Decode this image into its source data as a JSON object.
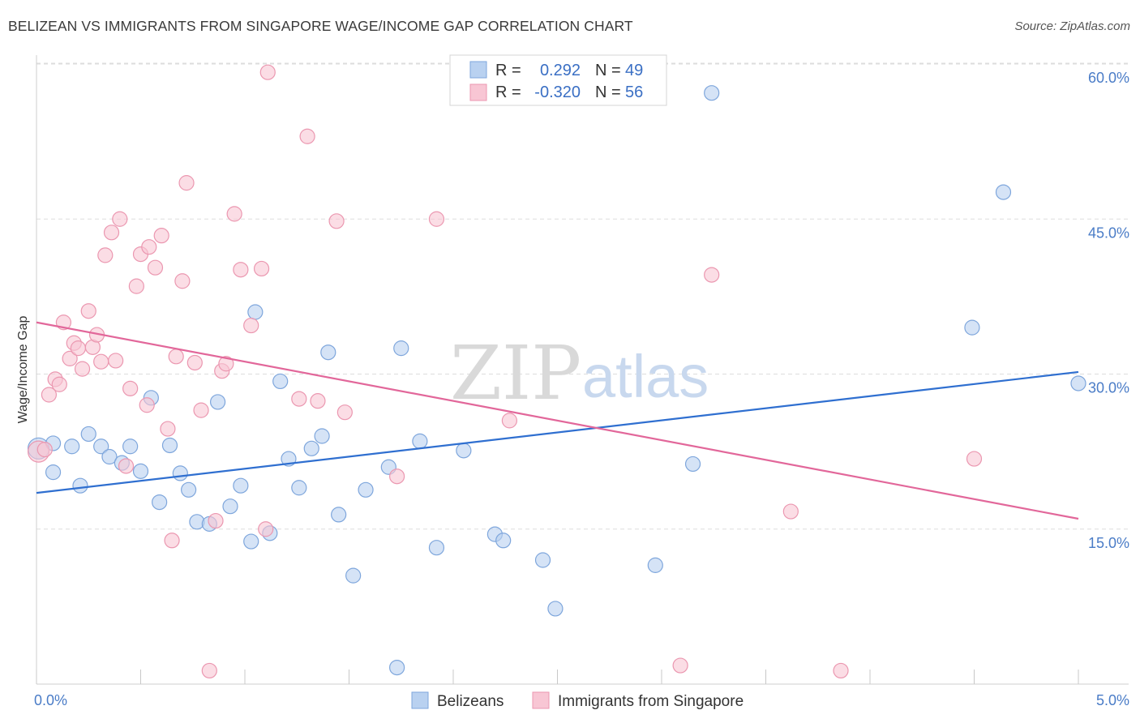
{
  "header": {
    "title": "BELIZEAN VS IMMIGRANTS FROM SINGAPORE WAGE/INCOME GAP CORRELATION CHART",
    "source": "Source: ZipAtlas.com"
  },
  "watermark": {
    "zip": "ZIP",
    "atlas": "atlas"
  },
  "legend": {
    "r_label": "R =",
    "n_label": "N =",
    "rows": [
      {
        "r": "0.292",
        "n": "49",
        "color": "#a9c6ee"
      },
      {
        "r": "-0.320",
        "n": "56",
        "color": "#f5b6c8"
      }
    ]
  },
  "colors": {
    "blue_fill": "#b9d1f0",
    "blue_stroke": "#7ea6dc",
    "blue_line": "#2f6fd0",
    "pink_fill": "#f8c6d4",
    "pink_stroke": "#eb97b0",
    "pink_line": "#e2679a",
    "grid": "#dddddd",
    "axis_text": "#4a7cc7"
  },
  "chart_data": {
    "type": "scatter",
    "title": "BELIZEAN VS IMMIGRANTS FROM SINGAPORE WAGE/INCOME GAP CORRELATION CHART",
    "ylabel": "Wage/Income Gap",
    "xlabel": "",
    "xlim": [
      0,
      5
    ],
    "ylim": [
      0,
      61
    ],
    "x_ticks": [
      "0.0%",
      "5.0%"
    ],
    "y_ticks": [
      {
        "value": 15,
        "label": "15.0%"
      },
      {
        "value": 30,
        "label": "30.0%"
      },
      {
        "value": 45,
        "label": "45.0%"
      },
      {
        "value": 60,
        "label": "60.0%"
      }
    ],
    "grid": true,
    "legend_position": "bottom",
    "series": [
      {
        "name": "Belizeans",
        "color": "#b9d1f0",
        "trend": {
          "x0": 0,
          "y0": 18.5,
          "x1": 5,
          "y1": 30.2
        },
        "points": [
          [
            0.01,
            22.8
          ],
          [
            0.08,
            23.3
          ],
          [
            0.08,
            20.5
          ],
          [
            0.17,
            23.0
          ],
          [
            0.21,
            19.2
          ],
          [
            0.25,
            24.2
          ],
          [
            0.31,
            23.0
          ],
          [
            0.35,
            22.0
          ],
          [
            0.41,
            21.4
          ],
          [
            0.45,
            23.0
          ],
          [
            0.5,
            20.6
          ],
          [
            0.55,
            27.7
          ],
          [
            0.59,
            17.6
          ],
          [
            0.64,
            23.1
          ],
          [
            0.69,
            20.4
          ],
          [
            0.73,
            18.8
          ],
          [
            0.77,
            15.7
          ],
          [
            0.83,
            15.5
          ],
          [
            0.87,
            27.3
          ],
          [
            0.93,
            17.2
          ],
          [
            0.98,
            19.2
          ],
          [
            1.03,
            13.8
          ],
          [
            1.05,
            36.0
          ],
          [
            1.12,
            14.6
          ],
          [
            1.17,
            29.3
          ],
          [
            1.21,
            21.8
          ],
          [
            1.26,
            19.0
          ],
          [
            1.32,
            22.8
          ],
          [
            1.37,
            24.0
          ],
          [
            1.4,
            32.1
          ],
          [
            1.45,
            16.4
          ],
          [
            1.52,
            10.5
          ],
          [
            1.58,
            18.8
          ],
          [
            1.69,
            21.0
          ],
          [
            1.73,
            1.6
          ],
          [
            1.75,
            32.5
          ],
          [
            1.84,
            23.5
          ],
          [
            1.92,
            13.2
          ],
          [
            2.05,
            22.6
          ],
          [
            2.2,
            14.5
          ],
          [
            2.24,
            13.9
          ],
          [
            2.43,
            12.0
          ],
          [
            2.49,
            7.3
          ],
          [
            2.97,
            11.5
          ],
          [
            3.15,
            21.3
          ],
          [
            3.24,
            57.2
          ],
          [
            4.49,
            34.5
          ],
          [
            4.64,
            47.6
          ],
          [
            5.0,
            29.1
          ]
        ]
      },
      {
        "name": "Immigrants from Singapore",
        "color": "#f8c6d4",
        "trend": {
          "x0": 0,
          "y0": 35.0,
          "x1": 5,
          "y1": 16.0
        },
        "points": [
          [
            0.01,
            22.5
          ],
          [
            0.04,
            22.7
          ],
          [
            0.06,
            28.0
          ],
          [
            0.09,
            29.5
          ],
          [
            0.11,
            29.0
          ],
          [
            0.13,
            35.0
          ],
          [
            0.16,
            31.5
          ],
          [
            0.18,
            33.0
          ],
          [
            0.2,
            32.5
          ],
          [
            0.22,
            30.5
          ],
          [
            0.25,
            36.1
          ],
          [
            0.27,
            32.6
          ],
          [
            0.29,
            33.8
          ],
          [
            0.31,
            31.2
          ],
          [
            0.33,
            41.5
          ],
          [
            0.36,
            43.7
          ],
          [
            0.38,
            31.3
          ],
          [
            0.4,
            45.0
          ],
          [
            0.43,
            21.1
          ],
          [
            0.45,
            28.6
          ],
          [
            0.48,
            38.5
          ],
          [
            0.5,
            41.6
          ],
          [
            0.53,
            27.0
          ],
          [
            0.54,
            42.3
          ],
          [
            0.57,
            40.3
          ],
          [
            0.6,
            43.4
          ],
          [
            0.63,
            24.7
          ],
          [
            0.65,
            13.9
          ],
          [
            0.67,
            31.7
          ],
          [
            0.7,
            39.0
          ],
          [
            0.72,
            48.5
          ],
          [
            0.76,
            31.1
          ],
          [
            0.79,
            26.5
          ],
          [
            0.83,
            1.3
          ],
          [
            0.86,
            15.8
          ],
          [
            0.89,
            30.3
          ],
          [
            0.91,
            31.0
          ],
          [
            0.95,
            45.5
          ],
          [
            0.98,
            40.1
          ],
          [
            1.03,
            34.7
          ],
          [
            1.08,
            40.2
          ],
          [
            1.1,
            15.0
          ],
          [
            1.26,
            27.6
          ],
          [
            1.3,
            53.0
          ],
          [
            1.35,
            27.4
          ],
          [
            1.44,
            44.8
          ],
          [
            1.48,
            26.3
          ],
          [
            1.73,
            20.1
          ],
          [
            1.92,
            45.0
          ],
          [
            2.27,
            25.5
          ],
          [
            3.09,
            1.8
          ],
          [
            3.24,
            39.6
          ],
          [
            3.62,
            16.7
          ],
          [
            3.86,
            1.3
          ],
          [
            4.5,
            21.8
          ],
          [
            1.11,
            59.2
          ]
        ]
      }
    ]
  }
}
